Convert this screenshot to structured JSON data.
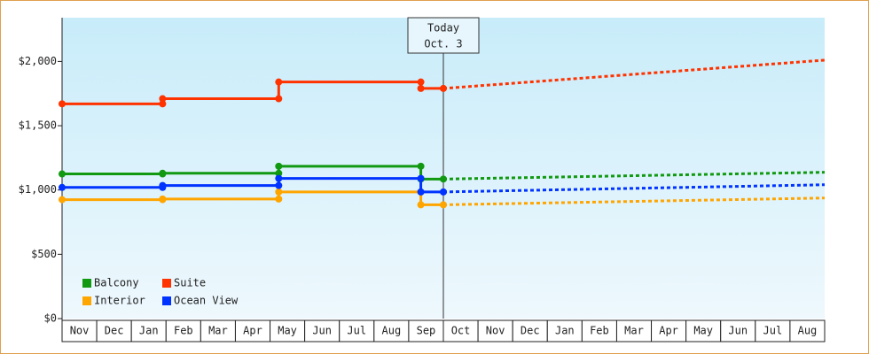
{
  "chart_data": {
    "type": "step-line",
    "categories": [
      "Nov",
      "Dec",
      "Jan",
      "Feb",
      "Mar",
      "Apr",
      "May",
      "Jun",
      "Jul",
      "Aug",
      "Sep",
      "Oct",
      "Nov",
      "Dec",
      "Jan",
      "Feb",
      "Mar",
      "Apr",
      "May",
      "Jun",
      "Jul",
      "Aug"
    ],
    "xlim": [
      0,
      22
    ],
    "ylim": [
      0,
      2340
    ],
    "yticks": [
      {
        "value": 0,
        "label": "$0"
      },
      {
        "value": 500,
        "label": "$500"
      },
      {
        "value": 1000,
        "label": "$1,000"
      },
      {
        "value": 1500,
        "label": "$1,500"
      },
      {
        "value": 2000,
        "label": "$2,000"
      }
    ],
    "annotation": {
      "x": 11,
      "lines": [
        "Today",
        "Oct. 3"
      ]
    },
    "legend": "bottom-left",
    "series": [
      {
        "name": "Balcony",
        "color": "#119911",
        "x": [
          0,
          2.9,
          2.9,
          6.25,
          6.25,
          10.35,
          10.35,
          11
        ],
        "values": [
          1125,
          1125,
          1130,
          1130,
          1185,
          1185,
          1085,
          1085
        ],
        "projection": {
          "x": [
            11,
            22
          ],
          "values": [
            1085,
            1138
          ]
        }
      },
      {
        "name": "Suite",
        "color": "#ff3300",
        "x": [
          0,
          2.9,
          2.9,
          6.25,
          6.25,
          10.35,
          10.35,
          11
        ],
        "values": [
          1670,
          1670,
          1710,
          1710,
          1840,
          1840,
          1790,
          1790
        ],
        "projection": {
          "x": [
            11,
            22
          ],
          "values": [
            1790,
            2010
          ]
        }
      },
      {
        "name": "Interior",
        "color": "#ffa500",
        "x": [
          0,
          2.9,
          2.9,
          6.25,
          6.25,
          10.35,
          10.35,
          11
        ],
        "values": [
          925,
          925,
          930,
          930,
          985,
          985,
          885,
          885
        ],
        "projection": {
          "x": [
            11,
            22
          ],
          "values": [
            885,
            938
          ]
        }
      },
      {
        "name": "Ocean View",
        "color": "#0033ff",
        "x": [
          0,
          2.9,
          2.9,
          6.25,
          6.25,
          10.35,
          10.35,
          11
        ],
        "values": [
          1020,
          1020,
          1035,
          1035,
          1090,
          1090,
          985,
          985
        ],
        "projection": {
          "x": [
            11,
            22
          ],
          "values": [
            985,
            1041
          ]
        }
      }
    ]
  }
}
